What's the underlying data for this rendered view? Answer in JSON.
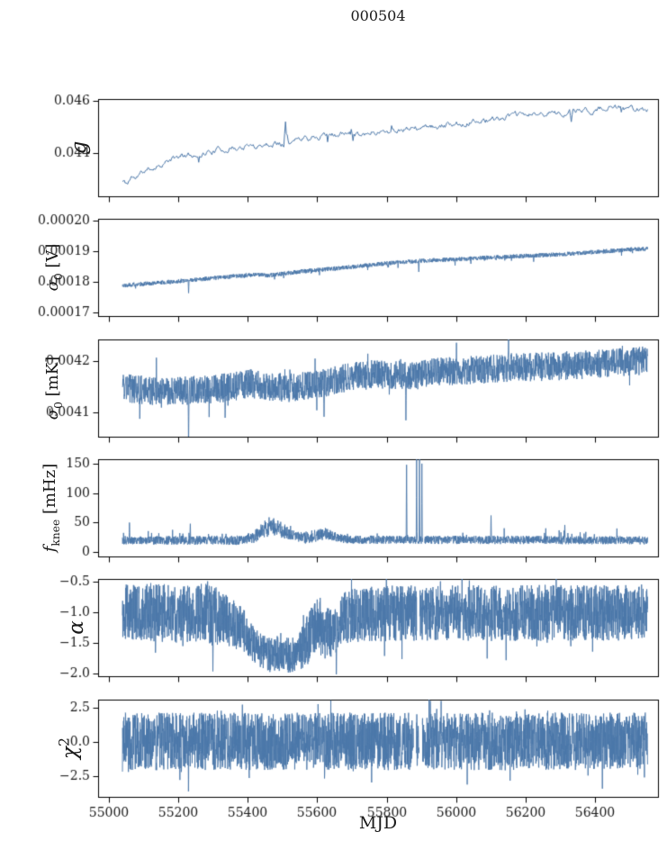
{
  "figure": {
    "bg": "#ffffff",
    "line_color": "#4b77a9",
    "axis_color": "#000000",
    "text_color": "#1a1a1a"
  },
  "chart_data": {
    "type": "line",
    "title": "000504",
    "xlabel": "MJD",
    "legend": null,
    "grid": false,
    "xlim": [
      54970,
      56580
    ],
    "data_xrange": [
      55040,
      56550
    ],
    "xticks": [
      {
        "v": 55000,
        "label": "55000"
      },
      {
        "v": 55200,
        "label": "55200"
      },
      {
        "v": 55400,
        "label": "55400"
      },
      {
        "v": 55600,
        "label": "55600"
      },
      {
        "v": 55800,
        "label": "55800"
      },
      {
        "v": 56000,
        "label": "56000"
      },
      {
        "v": 56200,
        "label": "56200"
      },
      {
        "v": 56400,
        "label": "56400"
      }
    ],
    "panels": [
      {
        "name": "g",
        "ylabel": {
          "main": "g",
          "sub": "",
          "sup": "",
          "unit": ""
        },
        "ylim": [
          0.04238,
          0.04606
        ],
        "yticks": [
          {
            "v": 0.044,
            "label": "0.044"
          },
          {
            "v": 0.046,
            "label": "0.046"
          }
        ],
        "trend": [
          [
            55040,
            0.04295
          ],
          [
            55055,
            0.04285
          ],
          [
            55065,
            0.04315
          ],
          [
            55075,
            0.04305
          ],
          [
            55100,
            0.0433
          ],
          [
            55150,
            0.0436
          ],
          [
            55200,
            0.04385
          ],
          [
            55250,
            0.04395
          ],
          [
            55300,
            0.0441
          ],
          [
            55350,
            0.0442
          ],
          [
            55400,
            0.04425
          ],
          [
            55450,
            0.04435
          ],
          [
            55500,
            0.0444
          ],
          [
            55550,
            0.0445
          ],
          [
            55600,
            0.04465
          ],
          [
            55650,
            0.0447
          ],
          [
            55700,
            0.04475
          ],
          [
            55750,
            0.0448
          ],
          [
            55800,
            0.04485
          ],
          [
            55850,
            0.0449
          ],
          [
            55900,
            0.04495
          ],
          [
            55950,
            0.045
          ],
          [
            56000,
            0.04515
          ],
          [
            56050,
            0.0452
          ],
          [
            56100,
            0.0453
          ],
          [
            56150,
            0.0454
          ],
          [
            56200,
            0.04545
          ],
          [
            56250,
            0.0455
          ],
          [
            56300,
            0.04555
          ],
          [
            56350,
            0.0456
          ],
          [
            56400,
            0.04565
          ],
          [
            56450,
            0.0457
          ],
          [
            56500,
            0.0457
          ],
          [
            56550,
            0.04565
          ]
        ],
        "amp": 8e-05,
        "smooth": true,
        "tail": {
          "prob": 0.012,
          "amp": 0.00035,
          "one_sided": false
        },
        "spikes": [
          [
            55510,
            0.0452
          ],
          [
            55515,
            0.0447
          ],
          [
            56330,
            0.0452
          ]
        ],
        "n": 600,
        "seed": 11,
        "lw": 1.0
      },
      {
        "name": "sigma0_V",
        "ylabel": {
          "main": "σ",
          "sub": "0",
          "sup": "",
          "unit": " [V]"
        },
        "ylim": [
          0.0001688,
          0.0002005
        ],
        "yticks": [
          {
            "v": 0.00017,
            "label": "0.00017"
          },
          {
            "v": 0.00018,
            "label": "0.00018"
          },
          {
            "v": 0.00019,
            "label": "0.00019"
          },
          {
            "v": 0.0002,
            "label": "0.00020"
          }
        ],
        "trend": [
          [
            55040,
            0.0001788
          ],
          [
            55150,
            0.0001797
          ],
          [
            55250,
            0.0001806
          ],
          [
            55350,
            0.0001817
          ],
          [
            55420,
            0.0001823
          ],
          [
            55460,
            0.000182
          ],
          [
            55550,
            0.0001833
          ],
          [
            55650,
            0.0001843
          ],
          [
            55700,
            0.0001848
          ],
          [
            55800,
            0.000186
          ],
          [
            55900,
            0.0001868
          ],
          [
            56000,
            0.0001873
          ],
          [
            56100,
            0.0001879
          ],
          [
            56200,
            0.0001884
          ],
          [
            56300,
            0.0001889
          ],
          [
            56400,
            0.0001897
          ],
          [
            56500,
            0.0001905
          ],
          [
            56550,
            0.0001907
          ]
        ],
        "amp": 7e-07,
        "tail": {
          "prob": 0.015,
          "amp": -2e-06,
          "one_sided": true
        },
        "spikes": [
          [
            55230,
            0.0001763
          ],
          [
            55745,
            0.0001838
          ],
          [
            55892,
            0.0001832
          ]
        ],
        "n": 2200,
        "seed": 22,
        "lw": 0.9
      },
      {
        "name": "sigma0_mK",
        "ylabel": {
          "main": "σ",
          "sub": "0",
          "sup": "",
          "unit": " [mK]"
        },
        "ylim": [
          0.004053,
          0.004243
        ],
        "yticks": [
          {
            "v": 0.0041,
            "label": "0.0041"
          },
          {
            "v": 0.0042,
            "label": "0.0042"
          }
        ],
        "trend": [
          [
            55040,
            0.004148
          ],
          [
            55120,
            0.004143
          ],
          [
            55200,
            0.004142
          ],
          [
            55280,
            0.004145
          ],
          [
            55350,
            0.00415
          ],
          [
            55420,
            0.004158
          ],
          [
            55450,
            0.004152
          ],
          [
            55520,
            0.004148
          ],
          [
            55600,
            0.004155
          ],
          [
            55660,
            0.004165
          ],
          [
            55720,
            0.004172
          ],
          [
            55800,
            0.004175
          ],
          [
            55880,
            0.004172
          ],
          [
            55950,
            0.00418
          ],
          [
            56050,
            0.004183
          ],
          [
            56150,
            0.004188
          ],
          [
            56250,
            0.00419
          ],
          [
            56350,
            0.004193
          ],
          [
            56450,
            0.004198
          ],
          [
            56550,
            0.004202
          ]
        ],
        "amp": 2.8e-05,
        "tail": {
          "prob": 0.02,
          "amp": 4.2e-05,
          "one_sided": false
        },
        "spikes": [
          [
            55090,
            0.004088
          ],
          [
            55230,
            0.00403
          ],
          [
            55335,
            0.00409
          ],
          [
            55620,
            0.004092
          ],
          [
            55855,
            0.004085
          ],
          [
            56150,
            0.004245
          ]
        ],
        "n": 2400,
        "seed": 33,
        "lw": 0.9
      },
      {
        "name": "fknee_mHz",
        "ylabel": {
          "main": "f",
          "sub": "knee",
          "sup": "",
          "unit": " [mHz]"
        },
        "ylim": [
          -7.5,
          157.5
        ],
        "yticks": [
          {
            "v": 0,
            "label": "0"
          },
          {
            "v": 50,
            "label": "50"
          },
          {
            "v": 100,
            "label": "100"
          },
          {
            "v": 150,
            "label": "150"
          }
        ],
        "trend": [
          [
            55040,
            20
          ],
          [
            55380,
            20
          ],
          [
            55420,
            26
          ],
          [
            55450,
            40
          ],
          [
            55480,
            42
          ],
          [
            55510,
            34
          ],
          [
            55540,
            26
          ],
          [
            55570,
            24
          ],
          [
            55600,
            29
          ],
          [
            55630,
            30
          ],
          [
            55660,
            24
          ],
          [
            55700,
            21
          ],
          [
            56550,
            20
          ]
        ],
        "amp_anchors": [
          [
            55040,
            7
          ],
          [
            55400,
            8
          ],
          [
            55450,
            15
          ],
          [
            55500,
            13
          ],
          [
            55540,
            9
          ],
          [
            55600,
            11
          ],
          [
            55650,
            8
          ],
          [
            55700,
            7
          ],
          [
            56550,
            7
          ]
        ],
        "amp": 7,
        "floor": 8,
        "tail": {
          "prob": 0.03,
          "amp": 16,
          "one_sided": true
        },
        "spikes": [
          [
            55060,
            50
          ],
          [
            55235,
            48
          ],
          [
            55857,
            148
          ],
          [
            55886,
            162
          ],
          [
            55894,
            162
          ],
          [
            55901,
            150
          ],
          [
            56100,
            62
          ],
          [
            56312,
            46
          ],
          [
            56462,
            40
          ]
        ],
        "gaps": [
          [
            55903,
            55909
          ]
        ],
        "n": 2400,
        "seed": 44,
        "lw": 0.9
      },
      {
        "name": "alpha",
        "ylabel": {
          "main": "α",
          "sub": "",
          "sup": "",
          "unit": ""
        },
        "ylim": [
          -2.05,
          -0.45
        ],
        "yticks": [
          {
            "v": -0.5,
            "label": "−0.5"
          },
          {
            "v": -1.0,
            "label": "−1.0"
          },
          {
            "v": -1.5,
            "label": "−1.5"
          },
          {
            "v": -2.0,
            "label": "−2.0"
          }
        ],
        "trend": [
          [
            55040,
            -1.0
          ],
          [
            55280,
            -1.02
          ],
          [
            55340,
            -1.12
          ],
          [
            55390,
            -1.3
          ],
          [
            55420,
            -1.55
          ],
          [
            55450,
            -1.68
          ],
          [
            55540,
            -1.7
          ],
          [
            55570,
            -1.45
          ],
          [
            55600,
            -1.22
          ],
          [
            55625,
            -1.35
          ],
          [
            55650,
            -1.28
          ],
          [
            55680,
            -1.1
          ],
          [
            55720,
            -1.02
          ],
          [
            56550,
            -1.0
          ]
        ],
        "amp_anchors": [
          [
            55040,
            0.46
          ],
          [
            55300,
            0.5
          ],
          [
            55420,
            0.3
          ],
          [
            55540,
            0.3
          ],
          [
            55580,
            0.45
          ],
          [
            55650,
            0.42
          ],
          [
            55700,
            0.46
          ],
          [
            56550,
            0.46
          ]
        ],
        "amp": 0.46,
        "tail": {
          "prob": 0.03,
          "amp": 0.35,
          "one_sided": false
        },
        "spikes": [
          [
            55300,
            -1.97
          ],
          [
            55655,
            -2.02
          ]
        ],
        "gaps": [
          [
            55886,
            55895
          ]
        ],
        "n": 2800,
        "seed": 55,
        "lw": 0.9
      },
      {
        "name": "chi2",
        "ylabel": {
          "main": "χ",
          "sub": "",
          "sup": "2",
          "unit": ""
        },
        "ylim": [
          -4.0,
          3.1
        ],
        "yticks": [
          {
            "v": -2.5,
            "label": "−2.5"
          },
          {
            "v": 0.0,
            "label": "0.0"
          },
          {
            "v": 2.5,
            "label": "2.5"
          }
        ],
        "trend": [
          [
            55040,
            0.05
          ],
          [
            56550,
            0.05
          ]
        ],
        "amp": 2.1,
        "tail": {
          "prob": 0.05,
          "amp": 1.3,
          "one_sided": false
        },
        "spikes": [
          [
            55230,
            -3.6
          ],
          [
            56420,
            -3.4
          ],
          [
            55925,
            3.0
          ]
        ],
        "gaps": [
          [
            55877,
            55885
          ],
          [
            55893,
            55902
          ]
        ],
        "n": 3000,
        "seed": 66,
        "lw": 0.9
      }
    ]
  }
}
